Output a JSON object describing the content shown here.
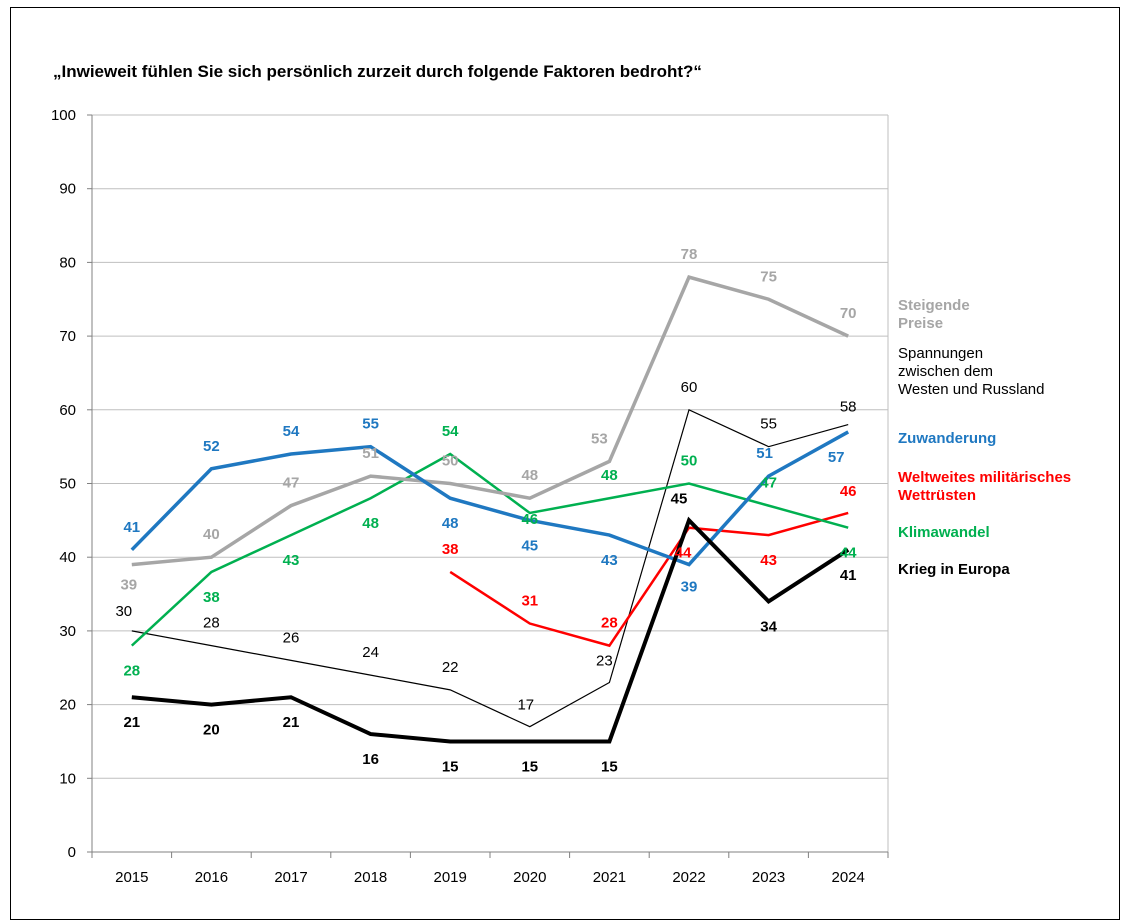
{
  "chart_data": {
    "type": "line",
    "title": "„Inwieweit fühlen Sie sich persönlich zurzeit durch folgende Faktoren bedroht?“",
    "xlabel": "",
    "ylabel": "",
    "x": [
      "2015",
      "2016",
      "2017",
      "2018",
      "2019",
      "2020",
      "2021",
      "2022",
      "2023",
      "2024"
    ],
    "ylim": [
      0,
      100
    ],
    "yticks": [
      "0",
      "10",
      "20",
      "30",
      "40",
      "50",
      "60",
      "70",
      "80",
      "90",
      "100"
    ],
    "grid": true,
    "legend_position": "right",
    "series": [
      {
        "name": "Steigende Preise",
        "legend": [
          "Steigende",
          "Preise"
        ],
        "color": "#a6a6a6",
        "values": [
          39,
          40,
          47,
          51,
          50,
          48,
          53,
          78,
          75,
          70
        ]
      },
      {
        "name": "Spannungen zwischen dem Westen und Russland",
        "legend": [
          "Spannungen",
          "zwischen dem",
          "Westen und Russland"
        ],
        "color": "#000000",
        "values": [
          30,
          28,
          26,
          24,
          22,
          17,
          23,
          60,
          55,
          58
        ]
      },
      {
        "name": "Zuwanderung",
        "legend": [
          "Zuwanderung"
        ],
        "color": "#1f78c1",
        "values": [
          41,
          52,
          54,
          55,
          48,
          45,
          43,
          39,
          51,
          57
        ]
      },
      {
        "name": "Weltweites militärisches Wettrüsten",
        "legend": [
          "Weltweites militärisches",
          "Wettrüsten"
        ],
        "color": "#ff0000",
        "values": [
          null,
          null,
          null,
          null,
          38,
          31,
          28,
          44,
          43,
          46
        ]
      },
      {
        "name": "Klimawandel",
        "legend": [
          "Klimawandel"
        ],
        "color": "#00b050",
        "values": [
          28,
          38,
          43,
          48,
          54,
          46,
          48,
          50,
          47,
          44
        ]
      },
      {
        "name": "Krieg in Europa",
        "legend": [
          "Krieg in Europa"
        ],
        "color": "#000000",
        "values": [
          21,
          20,
          21,
          16,
          15,
          15,
          15,
          45,
          34,
          41
        ]
      }
    ]
  }
}
